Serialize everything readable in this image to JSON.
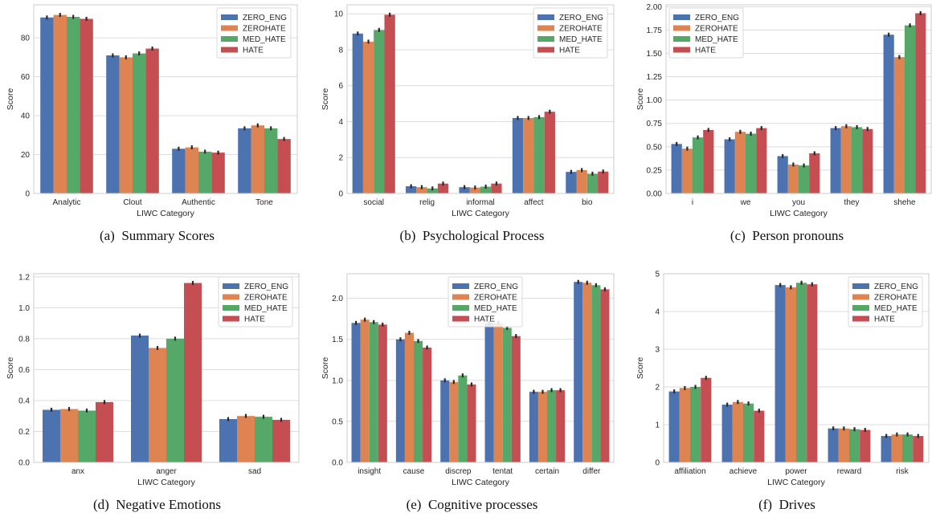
{
  "colors": {
    "series": [
      "#4c72b0",
      "#dd8452",
      "#55a868",
      "#c44e52"
    ],
    "grid": "#dcdcdc",
    "axis": "#cccccc",
    "text": "#262626",
    "error_bar": "#2a2a2a"
  },
  "chart_data": [
    {
      "type": "bar",
      "caption_tag": "(a)",
      "caption": "Summary Scores",
      "xlabel": "LIWC Category",
      "ylabel": "Score",
      "ylim": [
        0,
        97
      ],
      "yticks": [
        0,
        20,
        40,
        60,
        80
      ],
      "ytick_labels": [
        "0",
        "20",
        "40",
        "60",
        "80"
      ],
      "grid": true,
      "legend_position": "top-right",
      "categories": [
        "Analytic",
        "Clout",
        "Authentic",
        "Tone"
      ],
      "series": [
        {
          "name": "ZERO_ENG",
          "values": [
            90.5,
            71.0,
            23.0,
            33.5
          ]
        },
        {
          "name": "ZEROHATE",
          "values": [
            91.8,
            70.0,
            23.7,
            35.0
          ]
        },
        {
          "name": "MED_HATE",
          "values": [
            90.8,
            72.0,
            21.5,
            33.5
          ]
        },
        {
          "name": "HATE",
          "values": [
            89.8,
            74.5,
            21.0,
            28.0
          ]
        }
      ]
    },
    {
      "type": "bar",
      "caption_tag": "(b)",
      "caption": "Psychological Process",
      "xlabel": "LIWC Category",
      "ylabel": "Score",
      "ylim": [
        0,
        10.5
      ],
      "yticks": [
        0,
        2,
        4,
        6,
        8,
        10
      ],
      "ytick_labels": [
        "0",
        "2",
        "4",
        "6",
        "8",
        "10"
      ],
      "grid": true,
      "legend_position": "top-right",
      "categories": [
        "social",
        "relig",
        "informal",
        "affect",
        "bio"
      ],
      "series": [
        {
          "name": "ZERO_ENG",
          "values": [
            8.9,
            0.4,
            0.35,
            4.2,
            1.2
          ]
        },
        {
          "name": "ZEROHATE",
          "values": [
            8.45,
            0.35,
            0.33,
            4.2,
            1.3
          ]
        },
        {
          "name": "MED_HATE",
          "values": [
            9.1,
            0.28,
            0.38,
            4.25,
            1.1
          ]
        },
        {
          "name": "HATE",
          "values": [
            9.95,
            0.55,
            0.55,
            4.55,
            1.22
          ]
        }
      ]
    },
    {
      "type": "bar",
      "caption_tag": "(c)",
      "caption": "Person pronouns",
      "xlabel": "LIWC Category",
      "ylabel": "Score",
      "ylim": [
        0,
        2.02
      ],
      "yticks": [
        0,
        0.25,
        0.5,
        0.75,
        1.0,
        1.25,
        1.5,
        1.75,
        2.0
      ],
      "ytick_labels": [
        "0.00",
        "0.25",
        "0.50",
        "0.75",
        "1.00",
        "1.25",
        "1.50",
        "1.75",
        "2.00"
      ],
      "grid": true,
      "legend_position": "top-left",
      "categories": [
        "i",
        "we",
        "you",
        "they",
        "shehe"
      ],
      "series": [
        {
          "name": "ZERO_ENG",
          "values": [
            0.53,
            0.58,
            0.4,
            0.7,
            1.7
          ]
        },
        {
          "name": "ZEROHATE",
          "values": [
            0.48,
            0.66,
            0.31,
            0.72,
            1.46
          ]
        },
        {
          "name": "MED_HATE",
          "values": [
            0.6,
            0.64,
            0.3,
            0.71,
            1.8
          ]
        },
        {
          "name": "HATE",
          "values": [
            0.68,
            0.7,
            0.43,
            0.69,
            1.93
          ]
        }
      ]
    },
    {
      "type": "bar",
      "caption_tag": "(d)",
      "caption": "Negative Emotions",
      "xlabel": "LIWC Category",
      "ylabel": "Score",
      "ylim": [
        0,
        1.22
      ],
      "yticks": [
        0,
        0.2,
        0.4,
        0.6,
        0.8,
        1.0,
        1.2
      ],
      "ytick_labels": [
        "0.0",
        "0.2",
        "0.4",
        "0.6",
        "0.8",
        "1.0",
        "1.2"
      ],
      "grid": true,
      "legend_position": "top-right",
      "categories": [
        "anx",
        "anger",
        "sad"
      ],
      "series": [
        {
          "name": "ZERO_ENG",
          "values": [
            0.34,
            0.82,
            0.28
          ]
        },
        {
          "name": "ZEROHATE",
          "values": [
            0.345,
            0.74,
            0.3
          ]
        },
        {
          "name": "MED_HATE",
          "values": [
            0.335,
            0.8,
            0.295
          ]
        },
        {
          "name": "HATE",
          "values": [
            0.39,
            1.16,
            0.275
          ]
        }
      ]
    },
    {
      "type": "bar",
      "caption_tag": "(e)",
      "caption": "Cognitive processes",
      "xlabel": "LIWC Category",
      "ylabel": "Score",
      "ylim": [
        0,
        2.3
      ],
      "yticks": [
        0,
        0.5,
        1.0,
        1.5,
        2.0
      ],
      "ytick_labels": [
        "0.0",
        "0.5",
        "1.0",
        "1.5",
        "2.0"
      ],
      "grid": true,
      "legend_position": "top-center",
      "categories": [
        "insight",
        "cause",
        "discrep",
        "tentat",
        "certain",
        "differ"
      ],
      "series": [
        {
          "name": "ZERO_ENG",
          "values": [
            1.7,
            1.5,
            1.0,
            1.7,
            0.86,
            2.2
          ]
        },
        {
          "name": "ZEROHATE",
          "values": [
            1.74,
            1.58,
            0.98,
            1.7,
            0.86,
            2.19
          ]
        },
        {
          "name": "MED_HATE",
          "values": [
            1.71,
            1.48,
            1.06,
            1.64,
            0.88,
            2.16
          ]
        },
        {
          "name": "HATE",
          "values": [
            1.68,
            1.4,
            0.95,
            1.54,
            0.88,
            2.11
          ]
        }
      ]
    },
    {
      "type": "bar",
      "caption_tag": "(f)",
      "caption": "Drives",
      "xlabel": "LIWC Category",
      "ylabel": "Score",
      "ylim": [
        0,
        5
      ],
      "yticks": [
        0,
        1,
        2,
        3,
        4,
        5
      ],
      "ytick_labels": [
        "0",
        "1",
        "2",
        "3",
        "4",
        "5"
      ],
      "grid": true,
      "legend_position": "top-right",
      "categories": [
        "affiliation",
        "achieve",
        "power",
        "reward",
        "risk"
      ],
      "series": [
        {
          "name": "ZERO_ENG",
          "values": [
            1.88,
            1.53,
            4.7,
            0.9,
            0.7
          ]
        },
        {
          "name": "ZEROHATE",
          "values": [
            1.97,
            1.6,
            4.64,
            0.9,
            0.74
          ]
        },
        {
          "name": "MED_HATE",
          "values": [
            2.0,
            1.56,
            4.76,
            0.88,
            0.74
          ]
        },
        {
          "name": "HATE",
          "values": [
            2.24,
            1.37,
            4.72,
            0.86,
            0.7
          ]
        }
      ]
    }
  ]
}
